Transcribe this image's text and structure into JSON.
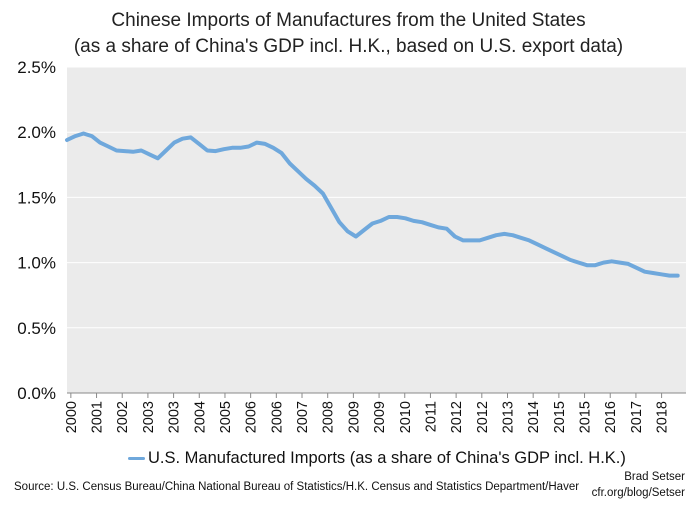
{
  "chart_data": {
    "type": "line",
    "title": "Chinese Imports of Manufactures from the United States",
    "subtitle": "(as a share of China's GDP incl. H.K., based on U.S. export data)",
    "ylim": [
      0,
      2.5
    ],
    "y_ticks": [
      "0.0%",
      "0.5%",
      "1.0%",
      "1.5%",
      "2.0%",
      "2.5%"
    ],
    "x_tick_labels": [
      "2000",
      "2001",
      "2002",
      "2003",
      "2003",
      "2004",
      "2005",
      "2006",
      "2006",
      "2007",
      "2008",
      "2009",
      "2009",
      "2010",
      "2011",
      "2012",
      "2012",
      "2013",
      "2014",
      "2015",
      "2015",
      "2016",
      "2017",
      "2018"
    ],
    "grid": "horizontal",
    "legend_placement": "bottom",
    "series": [
      {
        "name": "U.S. Manufactured Imports (as a share of China's GDP incl. H.K.)",
        "color": "#6fa8dc",
        "x": [
          2000.0,
          2000.25,
          2000.5,
          2000.75,
          2001.0,
          2001.25,
          2001.5,
          2001.75,
          2002.0,
          2002.25,
          2002.5,
          2002.75,
          2003.0,
          2003.25,
          2003.5,
          2003.75,
          2004.0,
          2004.25,
          2004.5,
          2004.75,
          2005.0,
          2005.25,
          2005.5,
          2005.75,
          2006.0,
          2006.25,
          2006.5,
          2006.75,
          2007.0,
          2007.25,
          2007.5,
          2007.75,
          2008.0,
          2008.25,
          2008.5,
          2008.75,
          2009.0,
          2009.25,
          2009.5,
          2009.75,
          2010.0,
          2010.25,
          2010.5,
          2010.75,
          2011.0,
          2011.25,
          2011.5,
          2011.75,
          2012.0,
          2012.25,
          2012.5,
          2012.75,
          2013.0,
          2013.25,
          2013.5,
          2013.75,
          2014.0,
          2014.25,
          2014.5,
          2014.75,
          2015.0,
          2015.25,
          2015.5,
          2015.75,
          2016.0,
          2016.25,
          2016.5,
          2016.75,
          2017.0,
          2017.25,
          2017.5,
          2017.75,
          2018.0,
          2018.25,
          2018.5
        ],
        "values": [
          1.94,
          1.97,
          1.99,
          1.97,
          1.92,
          1.89,
          1.86,
          1.855,
          1.85,
          1.86,
          1.83,
          1.8,
          1.86,
          1.92,
          1.95,
          1.96,
          1.91,
          1.86,
          1.855,
          1.87,
          1.88,
          1.88,
          1.89,
          1.92,
          1.91,
          1.88,
          1.84,
          1.76,
          1.7,
          1.64,
          1.59,
          1.53,
          1.42,
          1.31,
          1.24,
          1.2,
          1.25,
          1.3,
          1.32,
          1.35,
          1.35,
          1.34,
          1.32,
          1.31,
          1.29,
          1.27,
          1.26,
          1.2,
          1.17,
          1.17,
          1.17,
          1.19,
          1.21,
          1.22,
          1.21,
          1.19,
          1.17,
          1.14,
          1.11,
          1.08,
          1.05,
          1.02,
          1.0,
          0.98,
          0.98,
          1.0,
          1.01,
          1.0,
          0.99,
          0.96,
          0.93,
          0.92,
          0.91,
          0.9,
          0.9
        ]
      }
    ]
  },
  "footer": {
    "source": "Source: U.S. Census Bureau/China National Bureau of Statistics/H.K. Census and Statistics Department/Haver",
    "credit_name": "Brad Setser",
    "credit_url": "cfr.org/blog/Setser"
  }
}
